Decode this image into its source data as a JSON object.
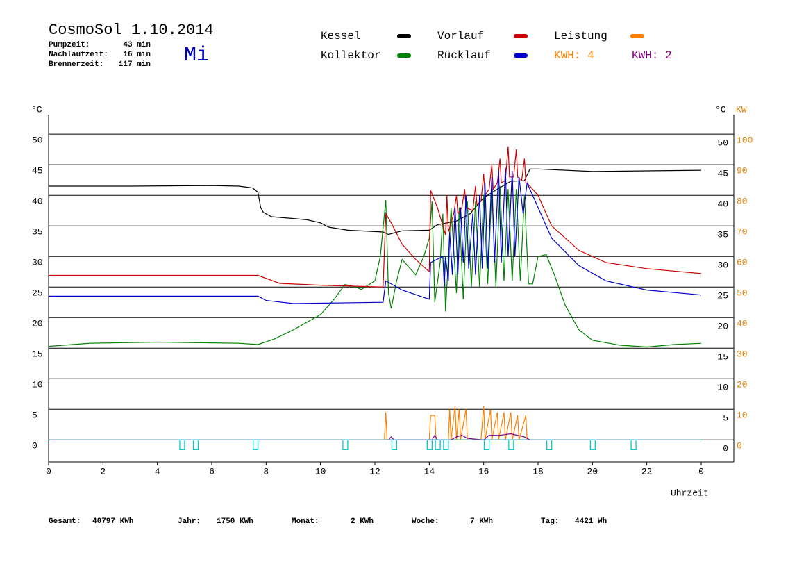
{
  "header": {
    "title": "CosmoSol 1.10.2014",
    "day": "Mi",
    "stats": [
      {
        "label": "Pumpzeit:",
        "value": "43 min"
      },
      {
        "label": "Nachlaufzeit:",
        "value": "16 min"
      },
      {
        "label": "Brennerzeit:",
        "value": "117 min"
      }
    ],
    "kwh_total_label": "KWH: 4"
  },
  "chart_data": {
    "type": "line",
    "y_label": "°C",
    "y2_unit_label": "°C",
    "y2_label": "KW",
    "x_label": "Uhrzeit",
    "xlim": [
      0,
      25.2
    ],
    "xticks": [
      0,
      2,
      4,
      6,
      8,
      10,
      12,
      14,
      16,
      18,
      20,
      22,
      {
        "value": 24,
        "label": "0"
      }
    ],
    "ylim": [
      -3.6,
      53.2
    ],
    "yticks": [
      0,
      5,
      10,
      15,
      20,
      25,
      30,
      35,
      40,
      45,
      50
    ],
    "y2lim": [
      -7.2,
      106.4
    ],
    "y2ticks": [
      0,
      10,
      20,
      30,
      40,
      50,
      60,
      70,
      80,
      90,
      100
    ],
    "grid": true,
    "series": [
      {
        "name": "Kessel",
        "color": "#000000",
        "x": [
          0,
          3,
          6,
          7,
          7.5,
          7.7,
          7.8,
          7.9,
          8.2,
          9,
          9.5,
          10,
          10.3,
          11,
          12.3,
          12.5,
          13,
          14,
          14.3,
          15,
          15.5,
          16,
          16.5,
          17,
          17.5,
          17.7,
          18,
          20,
          22,
          24
        ],
        "values": [
          41.5,
          41.5,
          41.6,
          41.5,
          41.2,
          40.5,
          38,
          37.2,
          36.5,
          36.2,
          36,
          35.5,
          34.8,
          34.3,
          34,
          33.6,
          34.2,
          34.3,
          35.2,
          35.8,
          37,
          39.6,
          41,
          42.3,
          42.4,
          44.3,
          44.3,
          43.9,
          44,
          44.1
        ]
      },
      {
        "name": "Kollektor",
        "color": "#008000",
        "x": [
          0,
          1.5,
          4,
          7,
          7.7,
          8.3,
          9,
          10,
          10.5,
          10.9,
          11.3,
          11.5,
          12,
          12.2,
          12.4,
          12.5,
          12.6,
          12.8,
          13,
          13.3,
          13.5,
          13.8,
          14,
          14.1,
          14.2,
          14.4,
          14.5,
          14.6,
          14.8,
          15,
          15.1,
          15.25,
          15.4,
          15.55,
          15.7,
          15.85,
          16,
          16.15,
          16.3,
          16.45,
          16.6,
          16.75,
          16.9,
          17.05,
          17.2,
          17.35,
          17.5,
          17.65,
          17.8,
          18,
          18.3,
          18.6,
          19,
          19.5,
          20,
          21,
          22,
          23,
          24
        ],
        "values": [
          15.3,
          15.8,
          16,
          15.8,
          15.6,
          16.5,
          18,
          20.5,
          23,
          25.4,
          25,
          24.6,
          26,
          30,
          39.2,
          24,
          21.5,
          26,
          29.5,
          28,
          27,
          30,
          33,
          39,
          22.5,
          29,
          37,
          21,
          38,
          24,
          38,
          23,
          39,
          25,
          39,
          25,
          40,
          25.5,
          41,
          25,
          41.5,
          26,
          41,
          26,
          41,
          26,
          40,
          25.5,
          25.5,
          30,
          30.3,
          27,
          22,
          18,
          16.3,
          15.5,
          15.2,
          15.6,
          15.8
        ]
      },
      {
        "name": "Vorlauf",
        "color": "#cc0000",
        "x": [
          0,
          7.7,
          8.5,
          10,
          12.3,
          12.4,
          12.6,
          13,
          13.5,
          14,
          14.05,
          14.3,
          14.5,
          14.6,
          14.65,
          14.7,
          14.9,
          15,
          15.05,
          15.2,
          15.3,
          15.35,
          15.6,
          15.7,
          15.75,
          15.9,
          16,
          16.05,
          16.2,
          16.3,
          16.35,
          16.5,
          16.6,
          16.65,
          16.8,
          16.9,
          16.95,
          17.1,
          17.2,
          17.25,
          17.4,
          17.5,
          17.55,
          17.6,
          18,
          18.5,
          19.5,
          20.5,
          22,
          24
        ],
        "values": [
          26.9,
          26.9,
          25.6,
          25.3,
          25,
          37,
          35.5,
          32,
          29.5,
          27.5,
          40.8,
          38,
          35,
          33.5,
          40,
          34,
          37,
          40,
          37,
          38,
          41,
          38,
          37.5,
          41.5,
          38.5,
          39,
          43.5,
          40,
          41,
          45,
          41,
          42,
          46,
          42,
          42.5,
          48,
          43,
          43,
          47.5,
          43,
          42.5,
          46,
          42,
          42,
          40,
          35,
          31,
          29,
          28,
          27.2
        ]
      },
      {
        "name": "Rücklauf",
        "color": "#0000cc",
        "x": [
          0,
          7.7,
          8,
          9,
          12.3,
          12.4,
          13,
          14,
          14.05,
          14.5,
          14.55,
          14.6,
          14.7,
          14.75,
          14.85,
          14.95,
          15.05,
          15.15,
          15.25,
          15.35,
          15.45,
          15.6,
          15.7,
          15.85,
          15.95,
          16.05,
          16.15,
          16.3,
          16.4,
          16.55,
          16.65,
          16.8,
          16.9,
          17.05,
          17.15,
          17.3,
          17.45,
          17.6,
          18,
          18.5,
          19.5,
          20.5,
          22,
          24
        ],
        "values": [
          23.5,
          23.5,
          22.8,
          22.3,
          22.5,
          26,
          24.5,
          23,
          29,
          30,
          25,
          30,
          26,
          34,
          27,
          38,
          27,
          38,
          29,
          40,
          28,
          37,
          27,
          40,
          28,
          42,
          28,
          43,
          29,
          44,
          29,
          44.5,
          30,
          44,
          30,
          43,
          37,
          42,
          38,
          33,
          28.5,
          26,
          24.5,
          23.7
        ]
      },
      {
        "name": "Leistung",
        "color": "#ff8000",
        "axis": "y2",
        "x": [
          0,
          12.35,
          12.4,
          12.45,
          14,
          14.05,
          14.2,
          14.25,
          14.7,
          14.75,
          14.8,
          14.95,
          15,
          15.1,
          15.15,
          15.35,
          15.4,
          15.9,
          16,
          16.05,
          16.25,
          16.3,
          16.5,
          16.55,
          16.75,
          16.8,
          17,
          17.05,
          17.25,
          17.3,
          17.55,
          17.6,
          24
        ],
        "values": [
          0,
          0,
          9,
          0,
          0,
          8,
          8,
          0,
          0,
          10,
          0,
          11,
          0,
          10,
          0,
          10,
          0,
          0,
          11,
          0,
          10,
          0,
          9,
          0,
          9,
          0,
          9,
          0,
          8,
          0,
          8,
          0,
          0
        ]
      },
      {
        "name": "KWH: 2",
        "color": "#800080",
        "axis": "y2",
        "x": [
          12.5,
          12.6,
          12.7,
          14.1,
          14.2,
          14.3,
          14.8,
          15,
          15.2,
          15.4,
          16,
          16.2,
          16.6,
          17,
          17.5,
          17.7
        ],
        "values": [
          0,
          1,
          0,
          0,
          1.5,
          0,
          0,
          1,
          1.5,
          0.5,
          0,
          1.5,
          1.5,
          2,
          1,
          0
        ]
      },
      {
        "color": "#00cccc",
        "axis": "y2",
        "x": [
          0,
          24
        ],
        "values": [
          0,
          0
        ],
        "events_x": [
          4.9,
          5.4,
          7.6,
          10.9,
          12.7,
          14,
          14.3,
          14.6,
          16.1,
          17,
          18.4,
          20,
          21.5
        ]
      }
    ]
  },
  "footer": [
    {
      "label": "Gesamt:",
      "value": "40797 KWh"
    },
    {
      "label": "Jahr:",
      "value": "1750 KWh"
    },
    {
      "label": "Monat:",
      "value": "2 KWh"
    },
    {
      "label": "Woche:",
      "value": "7 KWh"
    },
    {
      "label": "Tag:",
      "value": "4421 Wh"
    }
  ]
}
